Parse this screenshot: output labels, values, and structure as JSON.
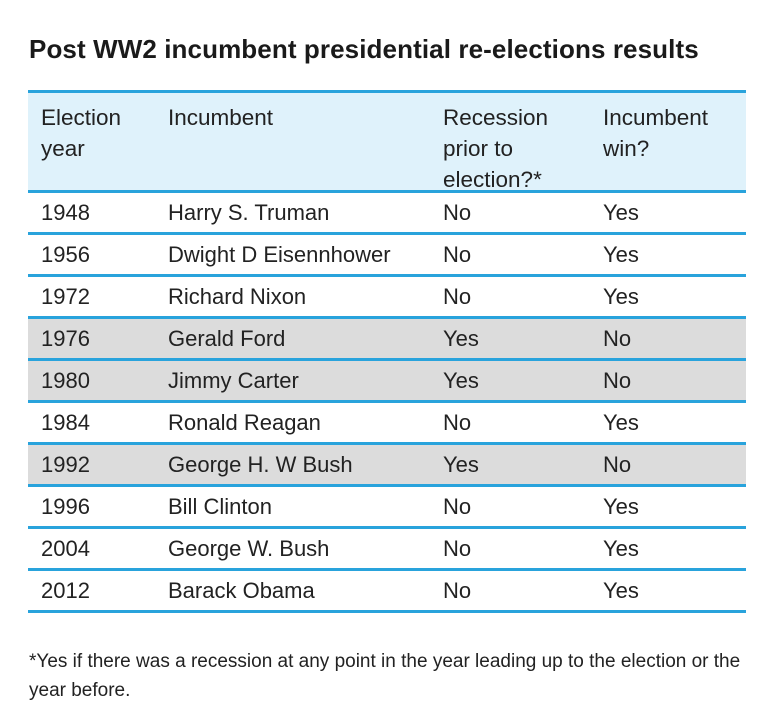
{
  "title": "Post WW2 incumbent presidential re-elections results",
  "table": {
    "headers": {
      "year": "Election year",
      "incumbent": "Incumbent",
      "recession": "Recession prior to election?*",
      "win": "Incumbent win?"
    },
    "rows": [
      {
        "year": "1948",
        "incumbent": "Harry S. Truman",
        "recession": "No",
        "win": "Yes",
        "shaded": false
      },
      {
        "year": "1956",
        "incumbent": "Dwight D Eisennhower",
        "recession": "No",
        "win": "Yes",
        "shaded": false
      },
      {
        "year": "1972",
        "incumbent": "Richard Nixon",
        "recession": "No",
        "win": "Yes",
        "shaded": false
      },
      {
        "year": "1976",
        "incumbent": "Gerald Ford",
        "recession": "Yes",
        "win": "No",
        "shaded": true
      },
      {
        "year": "1980",
        "incumbent": "Jimmy Carter",
        "recession": "Yes",
        "win": "No",
        "shaded": true
      },
      {
        "year": "1984",
        "incumbent": "Ronald Reagan",
        "recession": "No",
        "win": "Yes",
        "shaded": false
      },
      {
        "year": "1992",
        "incumbent": "George H. W Bush",
        "recession": "Yes",
        "win": "No",
        "shaded": true
      },
      {
        "year": "1996",
        "incumbent": "Bill Clinton",
        "recession": "No",
        "win": "Yes",
        "shaded": false
      },
      {
        "year": "2004",
        "incumbent": "George W. Bush",
        "recession": "No",
        "win": "Yes",
        "shaded": false
      },
      {
        "year": "2012",
        "incumbent": "Barack Obama",
        "recession": "No",
        "win": "Yes",
        "shaded": false
      }
    ]
  },
  "footnote": "*Yes if there was a recession at any point in the year leading up to the election or the year before.",
  "colors": {
    "rule": "#29a3dc",
    "header_bg": "#dff2fb",
    "shaded_bg": "#dcdcdc"
  }
}
